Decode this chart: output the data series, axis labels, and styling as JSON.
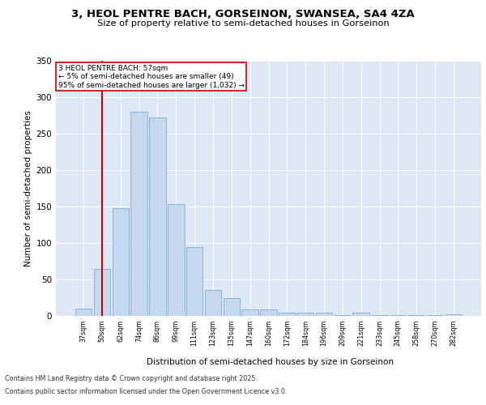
{
  "title_line1": "3, HEOL PENTRE BACH, GORSEINON, SWANSEA, SA4 4ZA",
  "title_line2": "Size of property relative to semi-detached houses in Gorseinon",
  "xlabel": "Distribution of semi-detached houses by size in Gorseinon",
  "ylabel": "Number of semi-detached properties",
  "categories": [
    "37sqm",
    "50sqm",
    "62sqm",
    "74sqm",
    "86sqm",
    "99sqm",
    "111sqm",
    "123sqm",
    "135sqm",
    "147sqm",
    "160sqm",
    "172sqm",
    "184sqm",
    "196sqm",
    "209sqm",
    "221sqm",
    "233sqm",
    "245sqm",
    "258sqm",
    "270sqm",
    "282sqm"
  ],
  "values": [
    10,
    64,
    148,
    280,
    272,
    153,
    95,
    36,
    25,
    9,
    9,
    5,
    4,
    4,
    1,
    4,
    1,
    1,
    1,
    1,
    2
  ],
  "bar_color": "#c5d8ed",
  "bar_edge_color": "#7aadd4",
  "vline_x": 1.0,
  "vline_color": "#cc0000",
  "annotation_title": "3 HEOL PENTRE BACH: 57sqm",
  "annotation_line2": "← 5% of semi-detached houses are smaller (49)",
  "annotation_line3": "95% of semi-detached houses are larger (1,032) →",
  "annotation_box_color": "#cc0000",
  "ylim": [
    0,
    350
  ],
  "yticks": [
    0,
    50,
    100,
    150,
    200,
    250,
    300,
    350
  ],
  "footer_line1": "Contains HM Land Registry data © Crown copyright and database right 2025.",
  "footer_line2": "Contains public sector information licensed under the Open Government Licence v3.0.",
  "plot_bg_color": "#dde8f4"
}
